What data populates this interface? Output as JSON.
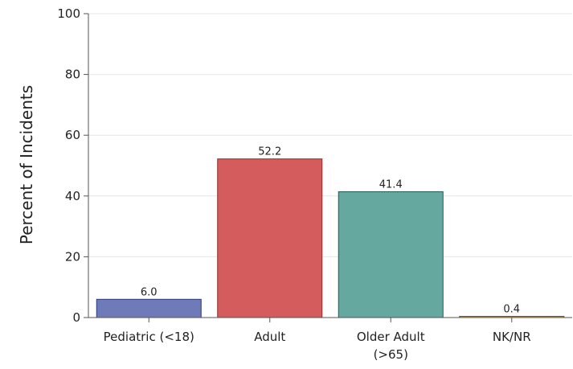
{
  "chart_data": {
    "type": "bar",
    "title": "",
    "xlabel": "",
    "ylabel": "Percent of Incidents",
    "ylim": [
      0,
      100
    ],
    "yticks": [
      0,
      20,
      40,
      60,
      80,
      100
    ],
    "grid": true,
    "categories": [
      [
        "Pediatric (<18)"
      ],
      [
        "Adult"
      ],
      [
        "Older Adult",
        "(>65)"
      ],
      [
        "NK/NR"
      ]
    ],
    "values": [
      6.0,
      52.2,
      41.4,
      0.4
    ],
    "value_labels": [
      "6.0",
      "52.2",
      "41.4",
      "0.4"
    ],
    "colors": [
      "#6F7AB8",
      "#D45C5C",
      "#64A8A0",
      "#D1A24A"
    ],
    "edge_colors": [
      "#2E3A7A",
      "#8E2A2A",
      "#1F5E58",
      "#6E5218"
    ]
  }
}
